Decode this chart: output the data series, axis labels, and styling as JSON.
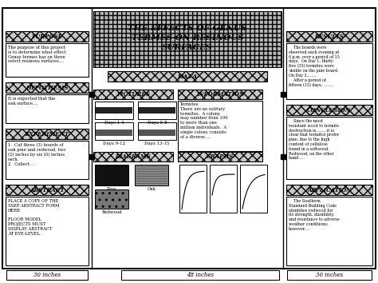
{
  "title_line1": "THE EFFECTS OF GENUS",
  "title_line2": "TERMES ON RESINOUS",
  "title_line3": "SURFACES",
  "bg_color": "#ffffff",
  "border_color": "#000000",
  "bottom_labels": [
    "30 inches",
    "48 inches",
    "30 inches"
  ],
  "sections": {
    "purpose_header": "PURPOSE",
    "purpose_body": "The purpose of this project\nis to determine what effect\nGenus termes has on three\nselect resinous surfaces....",
    "hypothesis_header": "HYPOTHESIS",
    "hypothesis_body": "It is expected that the\noak surface....",
    "experiment_header": "EXPERIMENT",
    "experiment_body": "1.  Cut three (3) boards of\noak pine and redwood, two\n(2) inches by six (6) inches\neach.\n2.  Collect....",
    "abstract_header": "ABSTRACT",
    "abstract_body": "PLACE A COPY OF THE\nSSEP ABSTRACT FORM\nHERE.\n\nFLOOR MODEL\nPROJECTS MUST\nDISPLAY ABSTRACT\nAT EYE-LEVEL.",
    "results_header": "RESULTS",
    "results_body": "    The boards were\nobserved each evening at\n6 p.m. over a period of 15\ndays.  On Day 1, thirty-\nfive (35) termites were\nvisible on the pine board.\nOn Day 2........\n    After a period of\nfifteen (15) days,  .......",
    "conclusion_header": "CONCLUSION",
    "conclusion_body": "    Since the most\nresistant wood to termite\ndestruction is......., it is\nclear that termites prefer\npine, due to the high\ncontent of cellulose\nfound in a softwood.\nRedwood, on the other\nhand ....",
    "application_header": "APPLICATION",
    "application_body": "    The Southern\nStandard Building Code\nidentifies redwood for\nits strength, durability,\nand resistance to adverse\nweather conditions;\nhowever.....",
    "data_header": "DATA",
    "pictures_header": "PICTURES",
    "pic_labels": [
      "Days 1-4",
      "Days 5-8",
      "Days 9-12",
      "Days 13-15"
    ],
    "information_header": "INFORMATION",
    "information_body": "Termites\nThere are no solitary\ntermites.  A colony\nmay number from 100\nto more than one\nmillion individuals.  A\nsingle colony consists\nof a diverse....",
    "diagrams_header": "DIAGRAMS",
    "diag_labels": [
      "Pine",
      "Oak",
      "Redwood"
    ],
    "graphs_header": "GRAPHS"
  }
}
